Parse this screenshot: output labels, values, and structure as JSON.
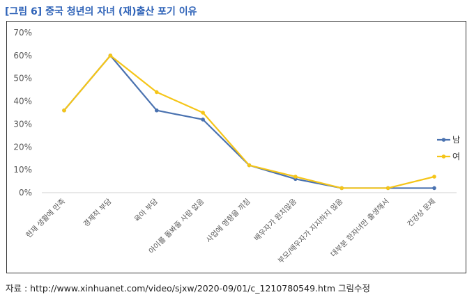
{
  "title": {
    "tag": "[그림 6]",
    "text": "중국 청년의 자녀 (재)출산 포기 이유"
  },
  "source": "자료 : http://www.xinhuanet.com/video/sjxw/2020-09/01/c_1210780549.htm 그림수정",
  "chart_data": {
    "type": "line",
    "title": "",
    "xlabel": "",
    "ylabel": "",
    "ylim": [
      0,
      70
    ],
    "yticks": [
      "0%",
      "10%",
      "20%",
      "30%",
      "40%",
      "50%",
      "60%",
      "70%"
    ],
    "categories": [
      "현재 생활에 만족",
      "경제적 부담",
      "육아 부담",
      "아이를 돌봐줄 사람 없음",
      "사업에 영향을 끼침",
      "배우자가 원치않음",
      "부모/배우자가 지지하지 않음",
      "대부분 한자녀만 출생해서",
      "건강상 문제"
    ],
    "series": [
      {
        "name": "남",
        "color": "#4a72b0",
        "values": [
          36,
          60,
          36,
          32,
          12,
          6,
          2,
          2,
          2
        ]
      },
      {
        "name": "여",
        "color": "#f5c518",
        "values": [
          36,
          60,
          44,
          35,
          12,
          7,
          2,
          2,
          7
        ]
      }
    ],
    "grid": false,
    "legend": "right"
  }
}
